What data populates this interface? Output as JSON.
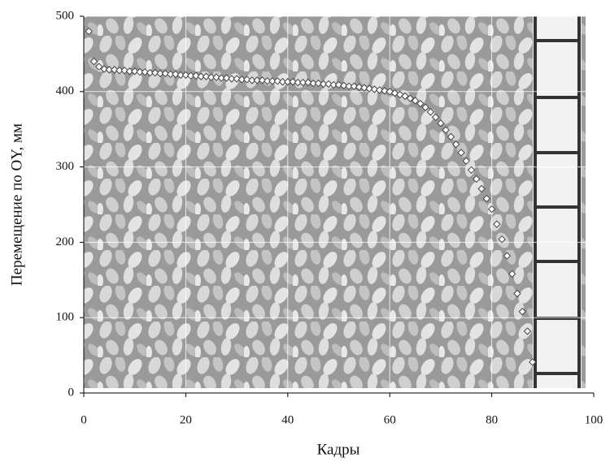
{
  "chart_data": {
    "type": "scatter",
    "xlabel": "Кадры",
    "ylabel": "Перемещение по OY, мм",
    "x": [
      1,
      2,
      3,
      4,
      5,
      6,
      7,
      8,
      9,
      10,
      11,
      12,
      13,
      14,
      15,
      16,
      17,
      18,
      19,
      20,
      21,
      22,
      23,
      24,
      25,
      26,
      27,
      28,
      29,
      30,
      31,
      32,
      33,
      34,
      35,
      36,
      37,
      38,
      39,
      40,
      41,
      42,
      43,
      44,
      45,
      46,
      47,
      48,
      49,
      50,
      51,
      52,
      53,
      54,
      55,
      56,
      57,
      58,
      59,
      60,
      61,
      62,
      63,
      64,
      65,
      66,
      67,
      68,
      69,
      70,
      71,
      72,
      73,
      74,
      75,
      76,
      77,
      78,
      79,
      80,
      81,
      82,
      83,
      84,
      85,
      86,
      87,
      88
    ],
    "values": [
      480,
      440,
      433,
      430,
      429,
      429,
      428,
      428,
      427,
      427,
      426,
      426,
      425,
      425,
      424,
      424,
      423,
      423,
      422,
      422,
      421,
      421,
      420,
      420,
      419,
      419,
      418,
      418,
      417,
      417,
      416,
      416,
      415,
      415,
      415,
      414,
      414,
      414,
      413,
      413,
      413,
      412,
      412,
      412,
      411,
      411,
      410,
      410,
      409,
      409,
      408,
      407,
      407,
      406,
      405,
      404,
      403,
      402,
      401,
      400,
      398,
      396,
      394,
      391,
      388,
      384,
      379,
      373,
      366,
      358,
      349,
      340,
      330,
      319,
      308,
      296,
      284,
      271,
      258,
      244,
      224,
      204,
      182,
      158,
      132,
      108,
      82,
      41
    ],
    "color": "#ffffff",
    "xlim": [
      0,
      100
    ],
    "xticks": [
      0,
      20,
      40,
      60,
      80,
      100
    ],
    "ylim": [
      0,
      500
    ],
    "yticks": [
      0,
      100,
      200,
      300,
      400,
      500
    ],
    "grid": true
  }
}
